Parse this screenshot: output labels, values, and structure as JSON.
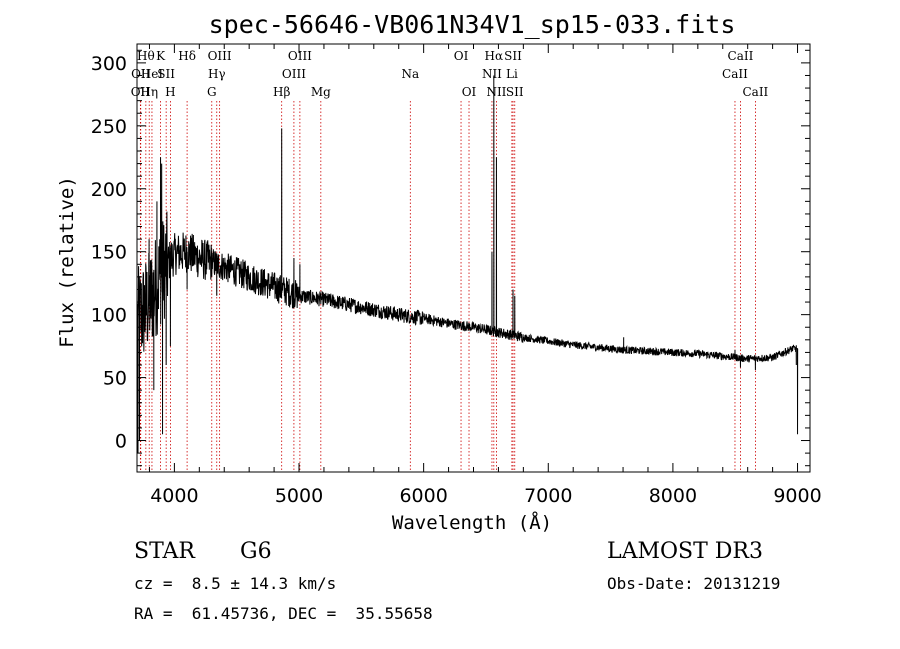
{
  "chart_data": {
    "type": "line",
    "title": "spec-56646-VB061N34V1_sp15-033.fits",
    "xlabel": "Wavelength (Å)",
    "ylabel": "Flux (relative)",
    "xlim": [
      3700,
      9100
    ],
    "ylim": [
      -25,
      315
    ],
    "x_ticks": [
      4000,
      5000,
      6000,
      7000,
      8000,
      9000
    ],
    "y_ticks": [
      0,
      50,
      100,
      150,
      200,
      250,
      300
    ],
    "grid": false,
    "series": [
      {
        "name": "spectrum",
        "continuum": [
          [
            3700,
            95
          ],
          [
            3800,
            110
          ],
          [
            3900,
            135
          ],
          [
            4000,
            148
          ],
          [
            4100,
            150
          ],
          [
            4200,
            145
          ],
          [
            4400,
            138
          ],
          [
            4600,
            130
          ],
          [
            4800,
            122
          ],
          [
            5000,
            115
          ],
          [
            5200,
            112
          ],
          [
            5400,
            108
          ],
          [
            5600,
            104
          ],
          [
            5800,
            100
          ],
          [
            6000,
            97
          ],
          [
            6200,
            93
          ],
          [
            6400,
            90
          ],
          [
            6600,
            86
          ],
          [
            6800,
            82
          ],
          [
            7000,
            79
          ],
          [
            7200,
            76
          ],
          [
            7400,
            74
          ],
          [
            7600,
            72
          ],
          [
            7800,
            71
          ],
          [
            8000,
            70
          ],
          [
            8200,
            69
          ],
          [
            8400,
            67
          ],
          [
            8600,
            65
          ],
          [
            8800,
            66
          ],
          [
            8960,
            73
          ]
        ],
        "features": [
          {
            "wavelength": 3708,
            "flux": -10
          },
          {
            "wavelength": 3720,
            "flux": 0
          },
          {
            "wavelength": 3797,
            "flux": 160
          },
          {
            "wavelength": 3835,
            "flux": 40
          },
          {
            "wavelength": 3860,
            "flux": 190
          },
          {
            "wavelength": 3889,
            "flux": 225
          },
          {
            "wavelength": 3898,
            "flux": 220
          },
          {
            "wavelength": 3905,
            "flux": 5
          },
          {
            "wavelength": 3934,
            "flux": 60
          },
          {
            "wavelength": 3968,
            "flux": 75
          },
          {
            "wavelength": 4102,
            "flux": 120
          },
          {
            "wavelength": 4340,
            "flux": 115
          },
          {
            "wavelength": 4861,
            "flux": 248
          },
          {
            "wavelength": 4959,
            "flux": 145
          },
          {
            "wavelength": 5007,
            "flux": 140
          },
          {
            "wavelength": 6548,
            "flux": 150
          },
          {
            "wavelength": 6563,
            "flux": 290
          },
          {
            "wavelength": 6584,
            "flux": 225
          },
          {
            "wavelength": 6717,
            "flux": 120
          },
          {
            "wavelength": 6731,
            "flux": 115
          },
          {
            "wavelength": 7605,
            "flux": 82
          },
          {
            "wavelength": 8498,
            "flux": 72
          },
          {
            "wavelength": 8542,
            "flux": 58
          },
          {
            "wavelength": 8662,
            "flux": 56
          },
          {
            "wavelength": 8990,
            "flux": 60
          },
          {
            "wavelength": 9000,
            "flux": 5
          }
        ]
      }
    ],
    "line_markers": [
      {
        "wavelength": 3727,
        "label": "OII",
        "row": 2
      },
      {
        "wavelength": 3730,
        "label": "OII",
        "row": 1
      },
      {
        "wavelength": 3771,
        "label": "Hθ",
        "row": 0
      },
      {
        "wavelength": 3798,
        "label": "Hη",
        "row": 2
      },
      {
        "wavelength": 3820,
        "label": "HeI",
        "row": 1
      },
      {
        "wavelength": 3889,
        "label": "K",
        "row": 0
      },
      {
        "wavelength": 3934,
        "label": "SII",
        "row": 1
      },
      {
        "wavelength": 3968,
        "label": "H",
        "row": 2
      },
      {
        "wavelength": 4102,
        "label": "Hδ",
        "row": 0
      },
      {
        "wavelength": 4300,
        "label": "G",
        "row": 2
      },
      {
        "wavelength": 4340,
        "label": "Hγ",
        "row": 1
      },
      {
        "wavelength": 4363,
        "label": "OIII",
        "row": 0
      },
      {
        "wavelength": 4861,
        "label": "Hβ",
        "row": 2
      },
      {
        "wavelength": 4959,
        "label": "OIII",
        "row": 1
      },
      {
        "wavelength": 5007,
        "label": "OIII",
        "row": 0
      },
      {
        "wavelength": 5175,
        "label": "Mg",
        "row": 2
      },
      {
        "wavelength": 5893,
        "label": "Na",
        "row": 1
      },
      {
        "wavelength": 6300,
        "label": "OI",
        "row": 0
      },
      {
        "wavelength": 6364,
        "label": "OI",
        "row": 2
      },
      {
        "wavelength": 6548,
        "label": "NII",
        "row": 1
      },
      {
        "wavelength": 6563,
        "label": "Hα",
        "row": 0
      },
      {
        "wavelength": 6584,
        "label": "NII",
        "row": 2
      },
      {
        "wavelength": 6708,
        "label": "Li",
        "row": 1
      },
      {
        "wavelength": 6717,
        "label": "SII",
        "row": 0
      },
      {
        "wavelength": 6731,
        "label": "SII",
        "row": 2
      },
      {
        "wavelength": 8498,
        "label": "CaII",
        "row": 1
      },
      {
        "wavelength": 8542,
        "label": "CaII",
        "row": 0
      },
      {
        "wavelength": 8662,
        "label": "CaII",
        "row": 2
      }
    ],
    "marker_color": "#cc0000",
    "series_color": "#000000"
  },
  "info": {
    "object_class": "STAR",
    "subclass": "G6",
    "redshift": "cz =  8.5 ± 14.3 km/s",
    "position": "RA =  61.45736, DEC =  35.55658",
    "survey": "LAMOST DR3",
    "obs_date": "Obs-Date: 20131219"
  }
}
